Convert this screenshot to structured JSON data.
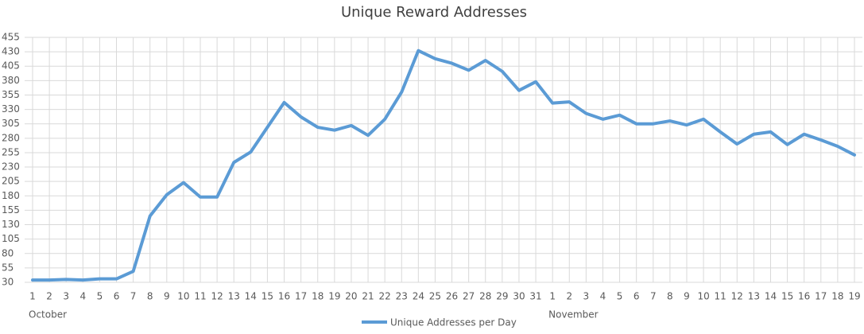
{
  "chart_data": {
    "type": "line",
    "title": "Unique Reward Addresses",
    "categories": [
      "1",
      "2",
      "3",
      "4",
      "5",
      "6",
      "7",
      "8",
      "9",
      "10",
      "11",
      "12",
      "13",
      "14",
      "15",
      "16",
      "17",
      "18",
      "19",
      "20",
      "21",
      "22",
      "23",
      "24",
      "25",
      "26",
      "27",
      "28",
      "29",
      "30",
      "31",
      "1",
      "2",
      "3",
      "4",
      "5",
      "6",
      "7",
      "8",
      "9",
      "10",
      "11",
      "12",
      "13",
      "14",
      "15",
      "16",
      "17",
      "18",
      "19"
    ],
    "group_labels": [
      "October",
      "November"
    ],
    "series": [
      {
        "name": "Unique Addresses per Day",
        "color": "#5b9bd5",
        "values": [
          34,
          34,
          35,
          34,
          36,
          36,
          49,
          145,
          182,
          203,
          178,
          178,
          238,
          256,
          299,
          342,
          317,
          299,
          294,
          302,
          285,
          313,
          360,
          432,
          418,
          410,
          398,
          415,
          396,
          363,
          378,
          341,
          343,
          323,
          313,
          320,
          305,
          305,
          310,
          303,
          313,
          291,
          270,
          287,
          291,
          269,
          287,
          277,
          266,
          251
        ]
      }
    ],
    "ylim": [
      30,
      455
    ],
    "yticks": [
      30,
      55,
      80,
      105,
      130,
      155,
      180,
      205,
      230,
      255,
      280,
      305,
      330,
      355,
      380,
      405,
      430,
      455
    ],
    "grid": true,
    "legend": "bottom"
  }
}
